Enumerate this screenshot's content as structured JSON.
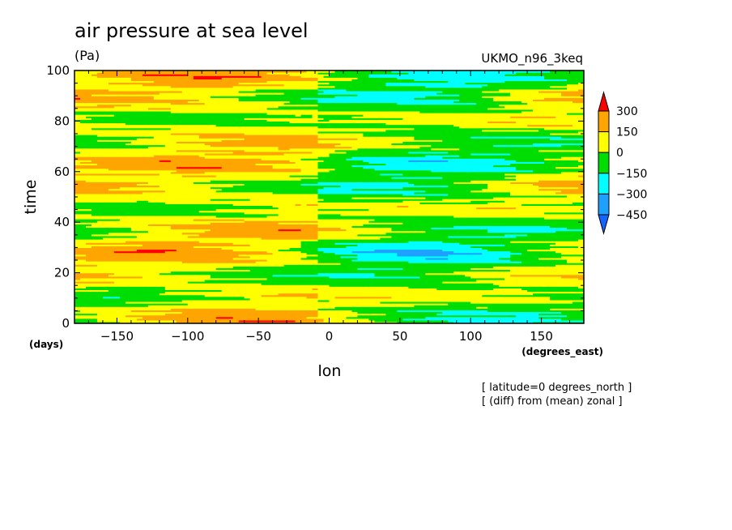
{
  "chart_data": {
    "type": "heatmap",
    "title": "air pressure at sea level",
    "units": "(Pa)",
    "model": "UKMO_n96_3keq",
    "xlabel": "lon",
    "xunits": "(degrees_east)",
    "ylabel": "time",
    "yunits": "(days)",
    "xlim": [
      -180,
      180
    ],
    "ylim": [
      0,
      100
    ],
    "xticks": [
      -150,
      -100,
      -50,
      0,
      50,
      100,
      150
    ],
    "yticks": [
      0,
      20,
      40,
      60,
      80,
      100
    ],
    "notes": [
      "[ latitude=0 degrees_north ]",
      "[ (diff) from (mean) zonal ]"
    ],
    "colorbar": {
      "levels": [
        -450,
        -300,
        -150,
        0,
        150,
        300
      ],
      "labels": [
        "300",
        "150",
        "0",
        "−150",
        "−300",
        "−450"
      ],
      "colors": [
        "#1464ff",
        "#1ea0ff",
        "#00ffff",
        "#00dd00",
        "#ffff00",
        "#ffa500",
        "#ff0000"
      ]
    }
  }
}
